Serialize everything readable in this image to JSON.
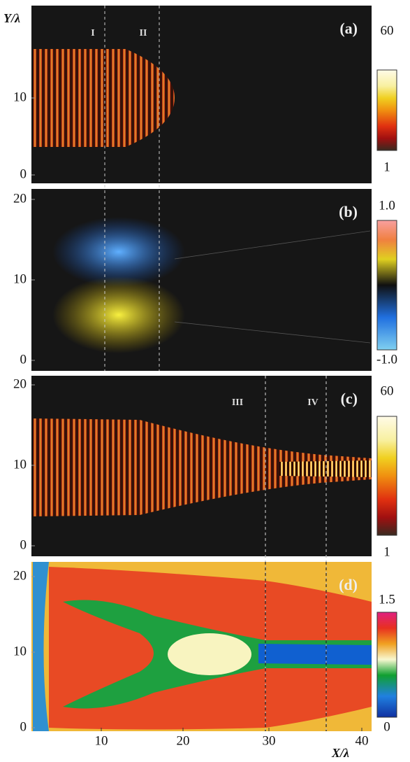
{
  "y_axis_label": "Y/λ",
  "x_axis": {
    "label": "X/λ",
    "ticks": [
      10,
      20,
      30,
      40
    ]
  },
  "panels": [
    {
      "label": "(a)",
      "region_labels": [
        "I",
        "II"
      ],
      "yticks": [
        0,
        10
      ],
      "colorbar": {
        "max": "60",
        "min": "1"
      }
    },
    {
      "label": "(b)",
      "yticks": [
        0,
        10,
        20
      ],
      "colorbar": {
        "max": "1.0",
        "min": "-1.0"
      }
    },
    {
      "label": "(c)",
      "region_labels": [
        "III",
        "IV"
      ],
      "yticks": [
        0,
        10,
        20
      ],
      "colorbar": {
        "max": "60",
        "min": "1"
      }
    },
    {
      "label": "(d)",
      "yticks": [
        0,
        10,
        20
      ],
      "colorbar": {
        "max": "1.5",
        "min": "0"
      }
    }
  ]
}
